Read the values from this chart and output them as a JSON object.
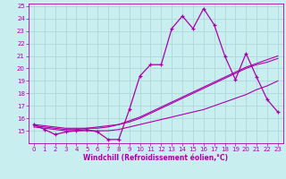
{
  "background_color": "#c8eef0",
  "grid_color": "#b0d8da",
  "line_color": "#aa00aa",
  "xlabel": "Windchill (Refroidissement éolien,°C)",
  "xlim": [
    -0.5,
    23.5
  ],
  "ylim": [
    14,
    25.2
  ],
  "yticks": [
    15,
    16,
    17,
    18,
    19,
    20,
    21,
    22,
    23,
    24,
    25
  ],
  "xticks": [
    0,
    1,
    2,
    3,
    4,
    5,
    6,
    7,
    8,
    9,
    10,
    11,
    12,
    13,
    14,
    15,
    16,
    17,
    18,
    19,
    20,
    21,
    22,
    23
  ],
  "line1_x": [
    0,
    1,
    2,
    3,
    4,
    5,
    6,
    7,
    8,
    9,
    10,
    11,
    12,
    13,
    14,
    15,
    16,
    17,
    18,
    19,
    20,
    21,
    22,
    23
  ],
  "line1_y": [
    15.5,
    15.1,
    14.7,
    14.9,
    15.0,
    15.1,
    14.9,
    14.3,
    14.3,
    16.7,
    19.4,
    20.3,
    20.3,
    23.2,
    24.2,
    23.2,
    24.8,
    23.5,
    21.0,
    19.1,
    21.2,
    19.3,
    17.5,
    16.5
  ],
  "line2_x": [
    0,
    1,
    2,
    3,
    4,
    5,
    6,
    7,
    8,
    9,
    10,
    11,
    12,
    13,
    14,
    15,
    16,
    17,
    18,
    19,
    20,
    21,
    22,
    23
  ],
  "line2_y": [
    15.3,
    15.2,
    15.1,
    15.0,
    15.0,
    15.0,
    15.0,
    15.0,
    15.1,
    15.3,
    15.5,
    15.7,
    15.9,
    16.1,
    16.3,
    16.5,
    16.7,
    17.0,
    17.3,
    17.6,
    17.9,
    18.3,
    18.6,
    19.0
  ],
  "line3_x": [
    0,
    1,
    2,
    3,
    4,
    5,
    6,
    7,
    8,
    9,
    10,
    11,
    12,
    13,
    14,
    15,
    16,
    17,
    18,
    19,
    20,
    21,
    22,
    23
  ],
  "line3_y": [
    15.5,
    15.4,
    15.3,
    15.2,
    15.2,
    15.2,
    15.3,
    15.4,
    15.5,
    15.8,
    16.1,
    16.5,
    16.9,
    17.3,
    17.7,
    18.1,
    18.5,
    18.9,
    19.3,
    19.7,
    20.1,
    20.4,
    20.7,
    21.0
  ],
  "line4_x": [
    0,
    1,
    2,
    3,
    4,
    5,
    6,
    7,
    8,
    9,
    10,
    11,
    12,
    13,
    14,
    15,
    16,
    17,
    18,
    19,
    20,
    21,
    22,
    23
  ],
  "line4_y": [
    15.4,
    15.3,
    15.2,
    15.1,
    15.1,
    15.2,
    15.2,
    15.3,
    15.5,
    15.7,
    16.0,
    16.4,
    16.8,
    17.2,
    17.6,
    18.0,
    18.4,
    18.8,
    19.2,
    19.6,
    20.0,
    20.3,
    20.5,
    20.8
  ],
  "tick_label_fontsize": 5.0,
  "xlabel_fontsize": 5.5
}
